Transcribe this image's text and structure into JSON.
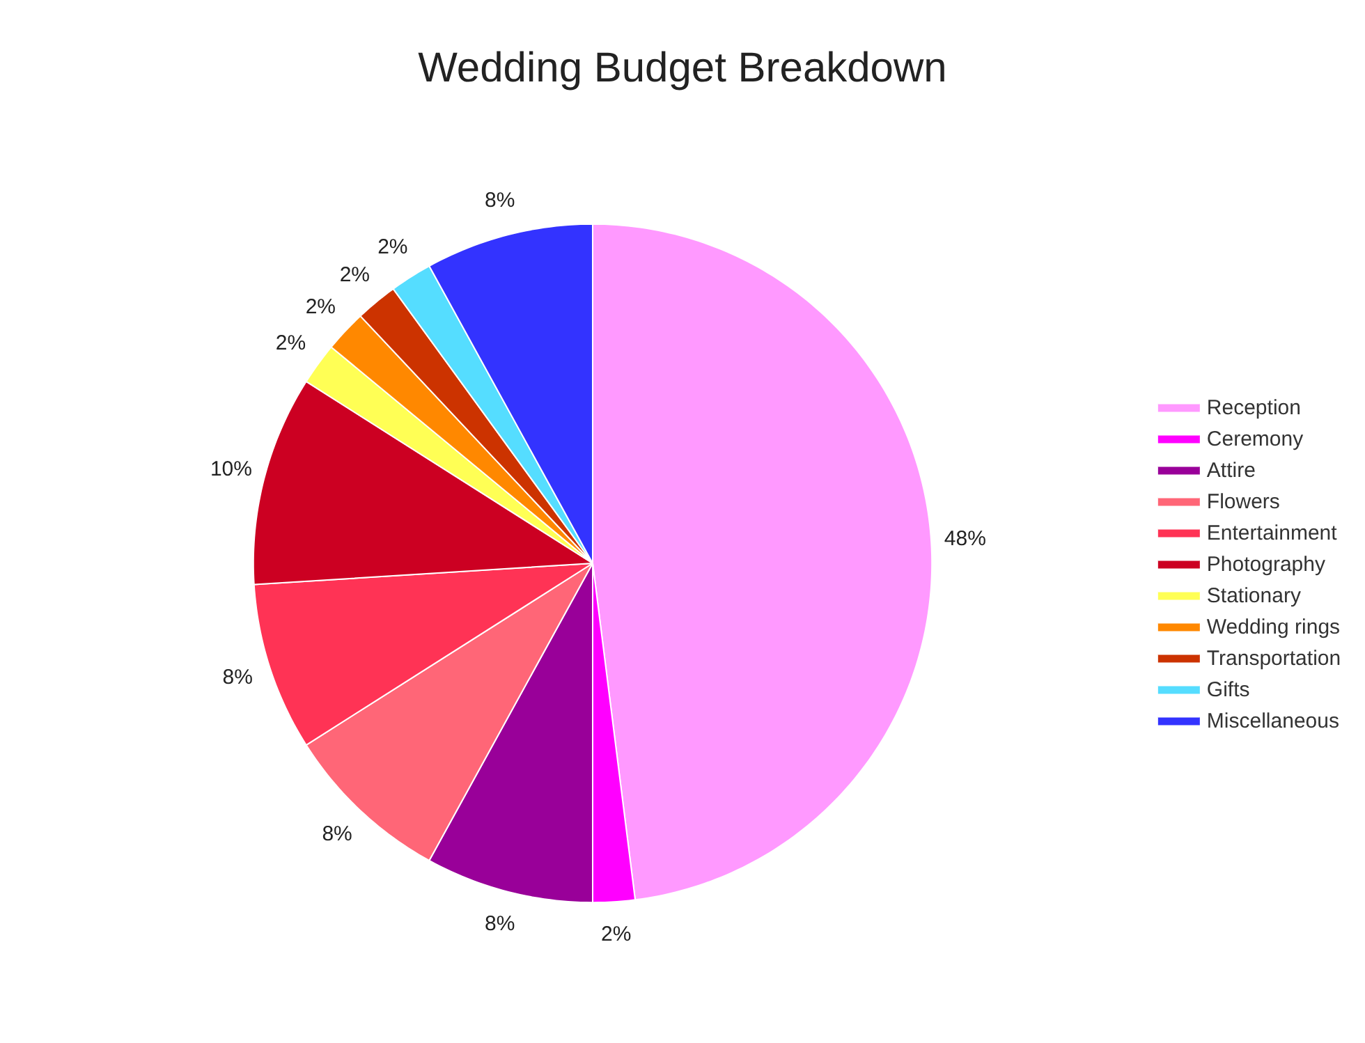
{
  "chart_data": {
    "type": "pie",
    "title": "Wedding Budget Breakdown",
    "categories": [
      "Reception",
      "Ceremony",
      "Attire",
      "Flowers",
      "Entertainment",
      "Photography",
      "Stationary",
      "Wedding rings",
      "Transportation",
      "Gifts",
      "Miscellaneous"
    ],
    "values": [
      48,
      2,
      8,
      8,
      8,
      10,
      2,
      2,
      2,
      2,
      8
    ],
    "value_labels": [
      "48%",
      "2%",
      "8%",
      "8%",
      "8%",
      "10%",
      "2%",
      "2%",
      "2%",
      "2%",
      "8%"
    ],
    "colors": [
      "#ff99ff",
      "#ff00ff",
      "#990099",
      "#ff6677",
      "#ff3355",
      "#cc0022",
      "#ffff55",
      "#ff8800",
      "#cc3300",
      "#55ddff",
      "#3333ff"
    ],
    "legend": "right"
  }
}
